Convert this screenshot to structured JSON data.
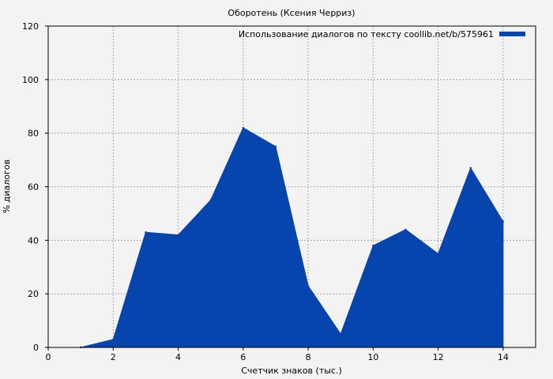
{
  "chart_data": {
    "type": "area",
    "title": "Оборотень (Ксения Черриз)",
    "xlabel": "Счетчик знаков (тыс.)",
    "ylabel": "% диалогов",
    "xlim": [
      0,
      15
    ],
    "ylim": [
      0,
      120
    ],
    "x_ticks": [
      0,
      2,
      4,
      6,
      8,
      10,
      12,
      14
    ],
    "y_ticks": [
      0,
      20,
      40,
      60,
      80,
      100,
      120
    ],
    "grid": true,
    "legend_position": "top-right",
    "series": [
      {
        "name": "Использование диалогов по тексту coollib.net/b/575961",
        "color": "#0645ad",
        "x": [
          1,
          2,
          3,
          4,
          5,
          6,
          7,
          8,
          9,
          10,
          11,
          12,
          13,
          14
        ],
        "values": [
          0,
          3,
          43,
          42,
          55,
          82,
          75,
          23,
          5,
          38,
          44,
          35,
          67,
          47
        ]
      }
    ]
  }
}
